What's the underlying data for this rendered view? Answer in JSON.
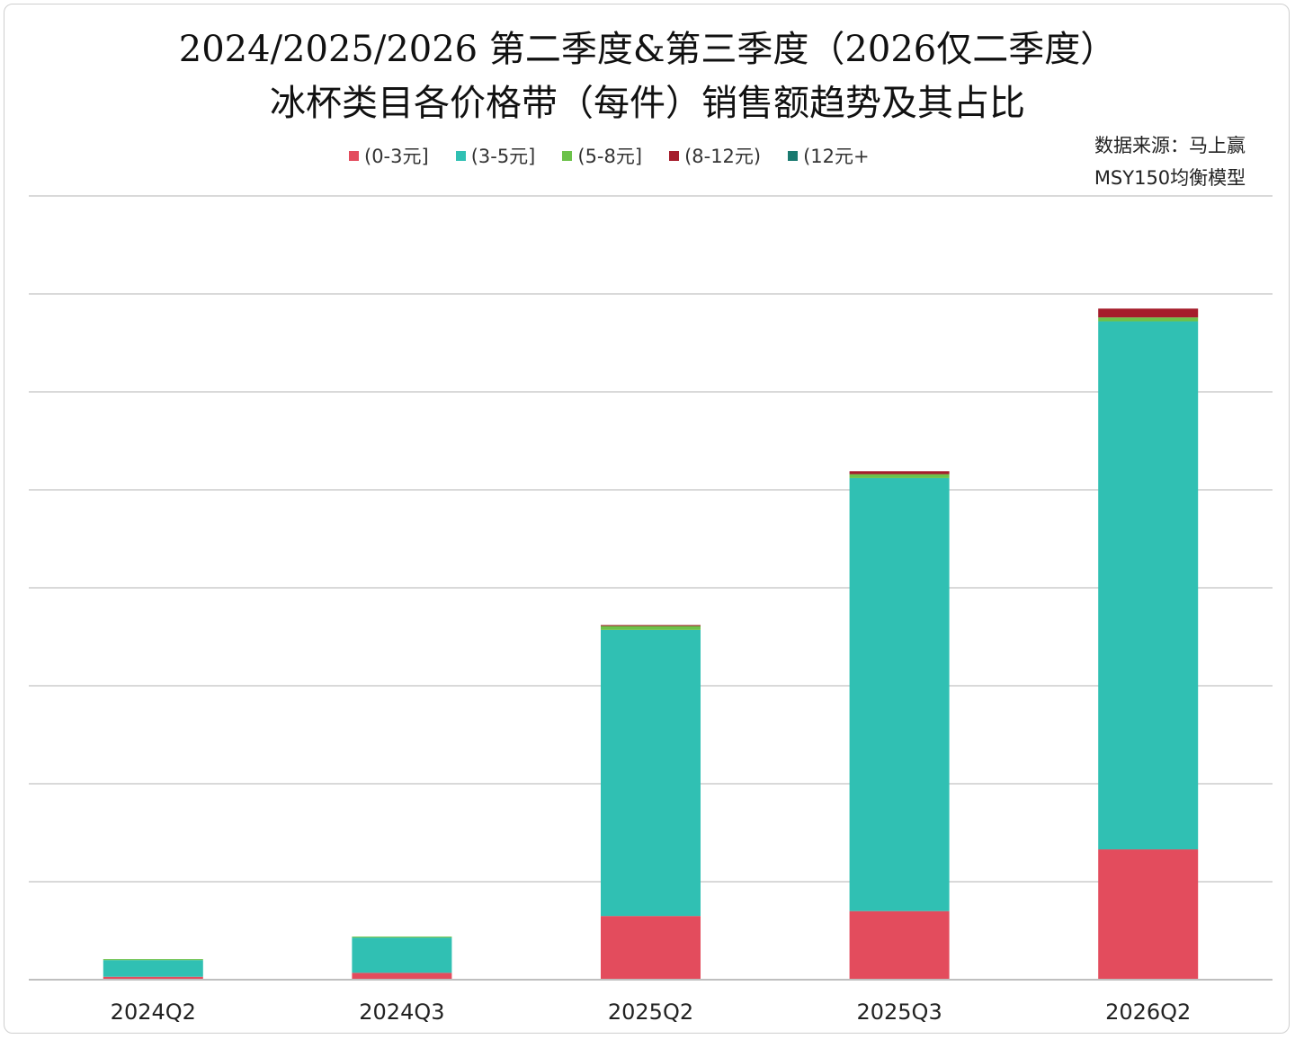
{
  "title_line1": "2024/2025/2026 第二季度&第三季度（2026仅二季度）",
  "title_line2": "冰杯类目各价格带（每件）销售额趋势及其占比",
  "source_line1": "数据来源：马上赢",
  "source_line2": "MSY150均衡模型",
  "colors": {
    "grid": "#d9d9d9",
    "axis": "#bfbfbf"
  },
  "chart_data": {
    "type": "bar",
    "stacked": true,
    "categories": [
      "2024Q2",
      "2024Q3",
      "2025Q2",
      "2025Q3",
      "2026Q2"
    ],
    "ylim": [
      0,
      8
    ],
    "grid": true,
    "y_tick_labels_shown": false,
    "legend_position": "top",
    "series": [
      {
        "name": "(0-3元]",
        "color": "#e34c5d",
        "values": [
          0.03,
          0.07,
          0.65,
          0.7,
          1.33
        ]
      },
      {
        "name": "(3-5元]",
        "color": "#30c0b3",
        "values": [
          0.17,
          0.36,
          2.92,
          4.42,
          5.39
        ]
      },
      {
        "name": "(5-8元]",
        "color": "#6cc24a",
        "values": [
          0.01,
          0.01,
          0.04,
          0.04,
          0.04
        ]
      },
      {
        "name": "(8-12元)",
        "color": "#a51c2b",
        "values": [
          0.0,
          0.0,
          0.01,
          0.03,
          0.09
        ]
      },
      {
        "name": "(12元+",
        "color": "#1a7a70",
        "values": [
          0.0,
          0.0,
          0.0,
          0.0,
          0.0
        ]
      }
    ]
  }
}
